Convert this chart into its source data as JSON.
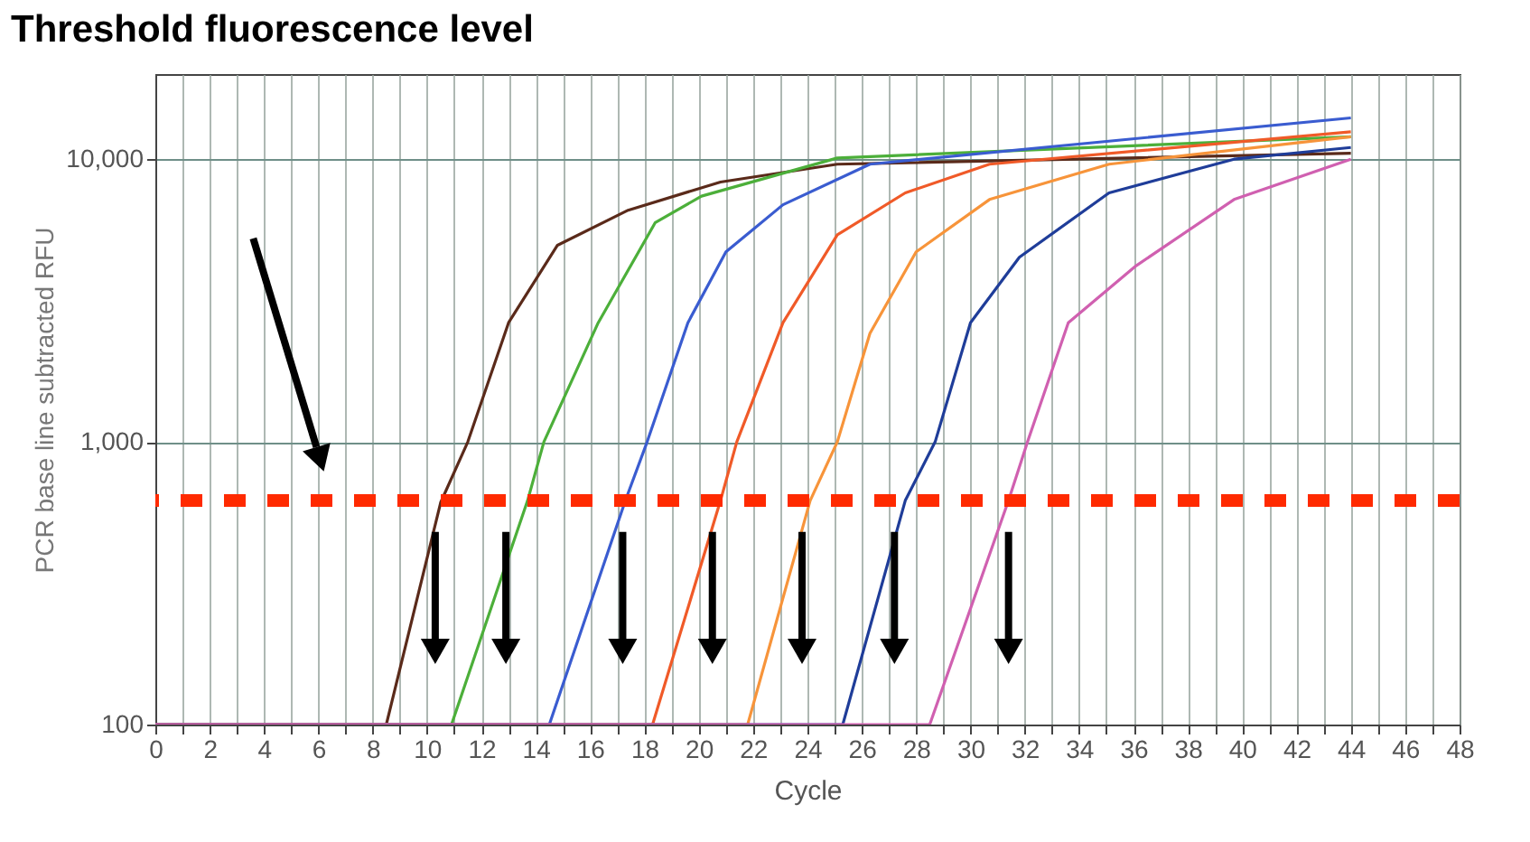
{
  "chart_data": {
    "type": "line",
    "xlabel": "Cycle",
    "ylabel": "PCR base line subtracted RFU",
    "xlim": [
      0,
      48
    ],
    "ylim": [
      100,
      20000
    ],
    "log": "y",
    "grid": true,
    "xticks": [
      0,
      {
        "value": 1,
        "label": null
      },
      2,
      {
        "value": 3,
        "label": null
      },
      4,
      {
        "value": 5,
        "label": null
      },
      6,
      {
        "value": 7,
        "label": null
      },
      8,
      {
        "value": 9,
        "label": null
      },
      10,
      {
        "value": 11,
        "label": null
      },
      12,
      {
        "value": 13,
        "label": null
      },
      14,
      {
        "value": 15,
        "label": null
      },
      16,
      {
        "value": 17,
        "label": null
      },
      18,
      {
        "value": 19,
        "label": null
      },
      20,
      {
        "value": 21,
        "label": null
      },
      22,
      {
        "value": 23,
        "label": null
      },
      24,
      {
        "value": 25,
        "label": null
      },
      26,
      {
        "value": 27,
        "label": null
      },
      28,
      {
        "value": 29,
        "label": null
      },
      30,
      {
        "value": 31,
        "label": null
      },
      32,
      {
        "value": 33,
        "label": null
      },
      34,
      {
        "value": 35,
        "label": null
      },
      36,
      {
        "value": 37,
        "label": null
      },
      38,
      {
        "value": 39,
        "label": null
      },
      40,
      {
        "value": 41,
        "label": null
      },
      42,
      {
        "value": 43,
        "label": null
      },
      44,
      {
        "value": 45,
        "label": null
      },
      46,
      {
        "value": 47,
        "label": null
      },
      48
    ],
    "yticks": [
      100,
      {
        "value": 1000,
        "label": "1,000"
      },
      {
        "value": 10000,
        "label": "10,000"
      }
    ],
    "annotations": [
      "Threshold fluorescence level"
    ],
    "ref_lines": [
      {
        "axis": "y",
        "value": 620,
        "color": "#ff2a00",
        "line_style": "dashed"
      }
    ],
    "series": [
      {
        "color": "#5a2a1a",
        "x": [
          0,
          8.5,
          10.5,
          11.5,
          13.0,
          14.8,
          17.4,
          20.8,
          25.1,
          44
        ],
        "values": [
          100,
          100,
          610,
          1000,
          2640,
          4960,
          6600,
          8300,
          9600,
          10500
        ]
      },
      {
        "color": "#4caf3a",
        "x": [
          0,
          10.9,
          13.7,
          14.3,
          16.3,
          18.4,
          20.1,
          25.1,
          44
        ],
        "values": [
          100,
          100,
          620,
          1000,
          2640,
          5970,
          7400,
          10100,
          12000
        ]
      },
      {
        "color": "#3a5cd0",
        "x": [
          0,
          14.5,
          17.3,
          18.1,
          19.6,
          21.0,
          23.1,
          26.3,
          44
        ],
        "values": [
          100,
          100,
          620,
          1000,
          2640,
          4700,
          6900,
          9600,
          14000
        ]
      },
      {
        "color": "#f05a28",
        "x": [
          0,
          18.3,
          20.8,
          21.4,
          23.1,
          25.1,
          27.6,
          30.7,
          44
        ],
        "values": [
          100,
          100,
          620,
          1000,
          2640,
          5400,
          7600,
          9600,
          12500
        ]
      },
      {
        "color": "#f7943a",
        "x": [
          0,
          21.8,
          24.1,
          25.1,
          26.3,
          28.0,
          30.7,
          35.1,
          44
        ],
        "values": [
          100,
          100,
          620,
          1000,
          2420,
          4700,
          7200,
          9600,
          12000
        ]
      },
      {
        "color": "#1f3d99",
        "x": [
          0,
          25.3,
          27.6,
          28.7,
          30.0,
          31.8,
          35.1,
          39.7,
          44
        ],
        "values": [
          100,
          100,
          620,
          1000,
          2640,
          4500,
          7600,
          10000,
          11000
        ]
      },
      {
        "color": "#d060b0",
        "x": [
          0,
          28.5,
          31.4,
          32.1,
          33.6,
          36.1,
          39.7,
          44
        ],
        "values": [
          100,
          100,
          620,
          1000,
          2640,
          4200,
          7200,
          10000
        ]
      }
    ]
  }
}
